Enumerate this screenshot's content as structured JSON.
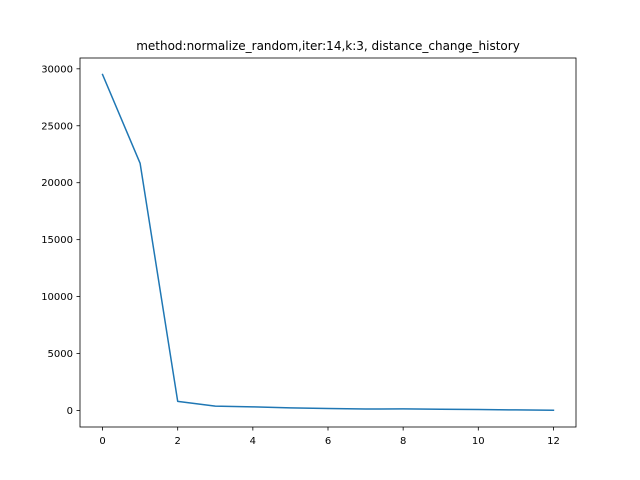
{
  "chart_data": {
    "type": "line",
    "title": "method:normalize_random,iter:14,k:3, distance_change_history",
    "xlabel": "",
    "ylabel": "",
    "x": [
      0,
      1,
      2,
      3,
      4,
      5,
      6,
      7,
      8,
      9,
      10,
      11,
      12
    ],
    "series": [
      {
        "values": [
          29500,
          21700,
          800,
          380,
          320,
          230,
          180,
          130,
          140,
          110,
          90,
          50,
          20
        ],
        "color": "#1f77b4"
      }
    ],
    "xlim": [
      -0.6,
      12.6
    ],
    "ylim": [
      -1450,
      30950
    ],
    "xticks": [
      0,
      2,
      4,
      6,
      8,
      10,
      12
    ],
    "yticks": [
      0,
      5000,
      10000,
      15000,
      20000,
      25000,
      30000
    ],
    "xtick_labels": [
      "0",
      "2",
      "4",
      "6",
      "8",
      "10",
      "12"
    ],
    "ytick_labels": [
      "0",
      "5000",
      "10000",
      "15000",
      "20000",
      "25000",
      "30000"
    ],
    "grid": false,
    "legend": "none"
  }
}
